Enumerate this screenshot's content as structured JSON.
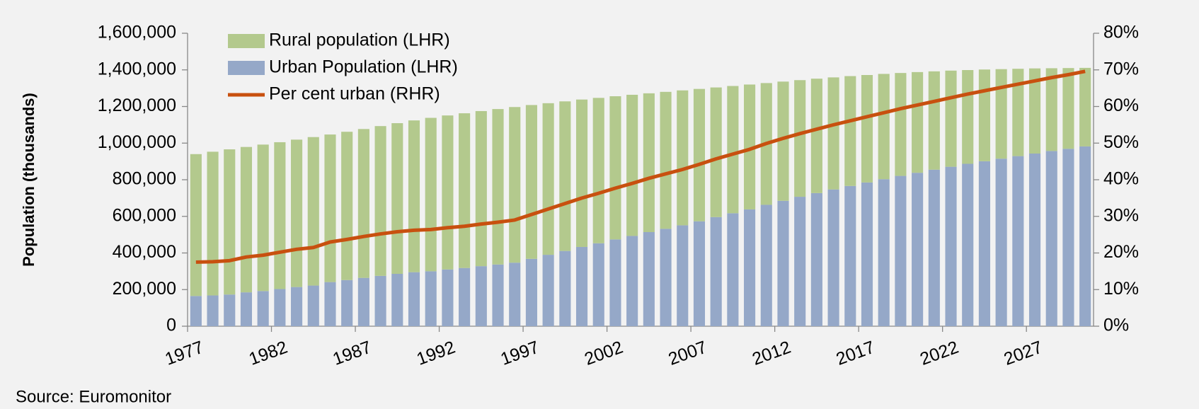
{
  "chart_data": {
    "type": "bar-line",
    "y_label": "Population (thousands)",
    "source": "Source: Euromonitor",
    "categories": [
      "1977",
      null,
      null,
      null,
      null,
      "1982",
      null,
      null,
      null,
      null,
      "1987",
      null,
      null,
      null,
      null,
      "1992",
      null,
      null,
      null,
      null,
      "1997",
      null,
      null,
      null,
      null,
      "2002",
      null,
      null,
      null,
      null,
      "2007",
      null,
      null,
      null,
      null,
      "2012",
      null,
      null,
      null,
      null,
      "2017",
      null,
      null,
      null,
      null,
      "2022",
      null,
      null,
      null,
      null,
      "2027",
      null,
      null,
      null
    ],
    "series": [
      {
        "name": "Rural population (LHR)",
        "color": "#b3c98d",
        "stack": true,
        "values": [
          775000,
          785000,
          793000,
          794000,
          800000,
          802000,
          805000,
          811000,
          806000,
          810000,
          813000,
          818000,
          823000,
          829000,
          838000,
          841000,
          845000,
          847000,
          849000,
          850000,
          840000,
          828000,
          817000,
          805000,
          794000,
          782000,
          771000,
          758000,
          748000,
          737000,
          723000,
          708000,
          695000,
          682000,
          665000,
          651000,
          637000,
          625000,
          612000,
          600000,
          587000,
          575000,
          562000,
          550000,
          537000,
          525000,
          512000,
          501000,
          489000,
          477000,
          465000,
          452000,
          441000,
          429000
        ]
      },
      {
        "name": "Urban Population (LHR)",
        "color": "#95a8c8",
        "stack": true,
        "values": [
          165000,
          168000,
          173000,
          185000,
          192000,
          203000,
          214000,
          222000,
          241000,
          252000,
          264000,
          275000,
          286000,
          295000,
          300000,
          310000,
          318000,
          328000,
          337000,
          347000,
          368000,
          390000,
          411000,
          433000,
          453000,
          474000,
          493000,
          514000,
          532000,
          551000,
          573000,
          596000,
          617000,
          638000,
          663000,
          685000,
          707000,
          727000,
          747000,
          766000,
          785000,
          803000,
          821000,
          838000,
          855000,
          871000,
          887000,
          901000,
          915000,
          929000,
          943000,
          957000,
          969000,
          982000
        ]
      },
      {
        "name": "Per cent urban (RHR)",
        "color": "#c8500f",
        "axis": "y2",
        "values": [
          17.5,
          17.6,
          17.9,
          18.9,
          19.4,
          20.2,
          21.0,
          21.5,
          23.0,
          23.7,
          24.5,
          25.2,
          25.8,
          26.2,
          26.4,
          26.9,
          27.3,
          27.9,
          28.4,
          29.0,
          30.5,
          32.0,
          33.5,
          35.0,
          36.3,
          37.7,
          39.0,
          40.4,
          41.6,
          42.8,
          44.2,
          45.7,
          47.0,
          48.3,
          49.9,
          51.3,
          52.6,
          53.8,
          55.0,
          56.1,
          57.2,
          58.3,
          59.4,
          60.4,
          61.4,
          62.4,
          63.4,
          64.3,
          65.2,
          66.1,
          67.0,
          67.9,
          68.7,
          69.6
        ]
      }
    ],
    "ylim": [
      0,
      1600000
    ],
    "yticks": [
      0,
      {
        "value": 200000,
        "label": "200,000"
      },
      {
        "value": 400000,
        "label": "400,000"
      },
      {
        "value": 600000,
        "label": "600,000"
      },
      {
        "value": 800000,
        "label": "800,000"
      },
      {
        "value": 1000000,
        "label": "1,000,000"
      },
      {
        "value": 1200000,
        "label": "1,200,000"
      },
      {
        "value": 1400000,
        "label": "1,400,000"
      },
      {
        "value": 1600000,
        "label": "1,600,000"
      }
    ],
    "y2lim": [
      0,
      80
    ],
    "y2ticks": [
      {
        "value": 0,
        "label": "0%"
      },
      {
        "value": 10,
        "label": "10%"
      },
      {
        "value": 20,
        "label": "20%"
      },
      {
        "value": 30,
        "label": "30%"
      },
      {
        "value": 40,
        "label": "40%"
      },
      {
        "value": 50,
        "label": "50%"
      },
      {
        "value": 60,
        "label": "60%"
      },
      {
        "value": 70,
        "label": "70%"
      },
      {
        "value": 80,
        "label": "80%"
      }
    ],
    "legend": "top-left",
    "grid": false
  }
}
